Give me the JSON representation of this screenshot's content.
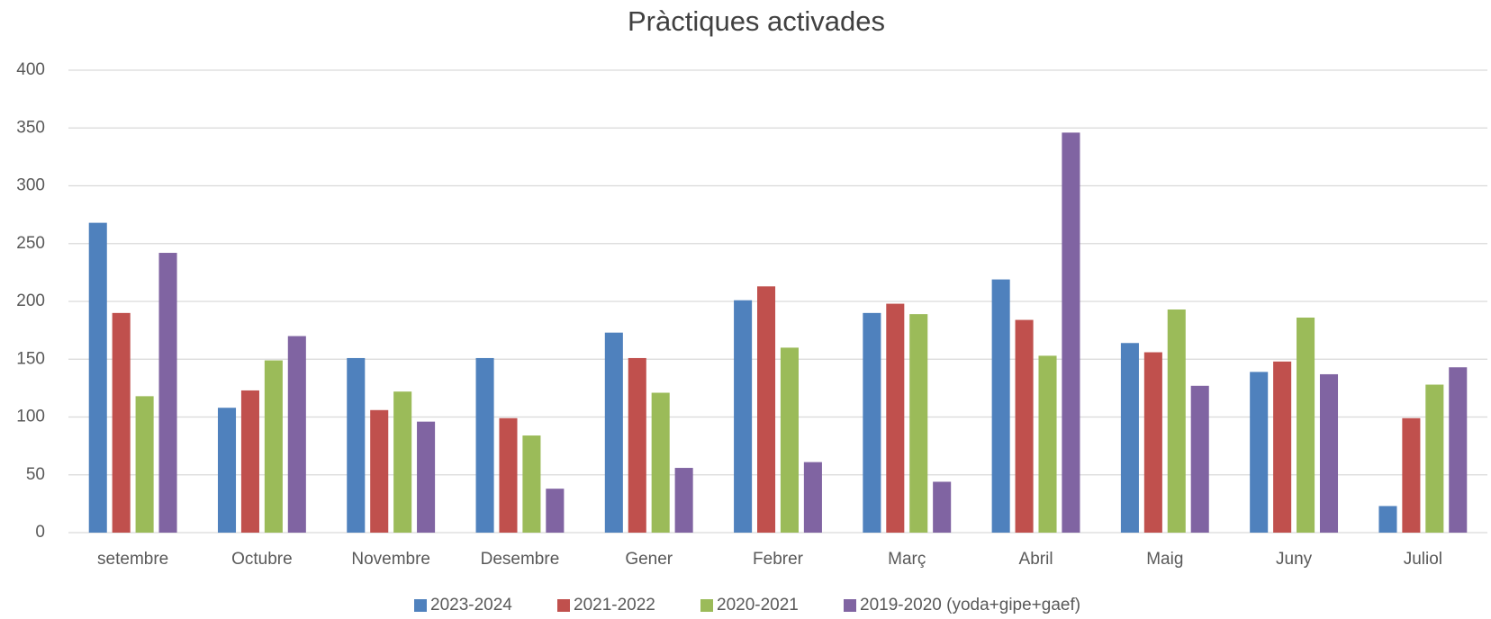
{
  "chart_data": {
    "type": "bar",
    "title": "Pràctiques activades",
    "categories": [
      "setembre",
      "Octubre",
      "Novembre",
      "Desembre",
      "Gener",
      "Febrer",
      "Març",
      "Abril",
      "Maig",
      "Juny",
      "Juliol"
    ],
    "series": [
      {
        "name": "2023-2024",
        "color": "#4f81bd",
        "values": [
          268,
          108,
          151,
          151,
          173,
          201,
          190,
          219,
          164,
          139,
          23
        ]
      },
      {
        "name": "2021-2022",
        "color": "#c0504d",
        "values": [
          190,
          123,
          106,
          99,
          151,
          213,
          198,
          184,
          156,
          148,
          99
        ]
      },
      {
        "name": "2020-2021",
        "color": "#9bbb59",
        "values": [
          118,
          149,
          122,
          84,
          121,
          160,
          189,
          153,
          193,
          186,
          128
        ]
      },
      {
        "name": "2019-2020 (yoda+gipe+gaef)",
        "color": "#8064a2",
        "values": [
          242,
          170,
          96,
          38,
          56,
          61,
          44,
          346,
          127,
          137,
          143
        ]
      }
    ],
    "ylim": [
      0,
      400
    ],
    "yticks": [
      0,
      50,
      100,
      150,
      200,
      250,
      300,
      350,
      400
    ],
    "grid": true,
    "legend": "bottom"
  }
}
